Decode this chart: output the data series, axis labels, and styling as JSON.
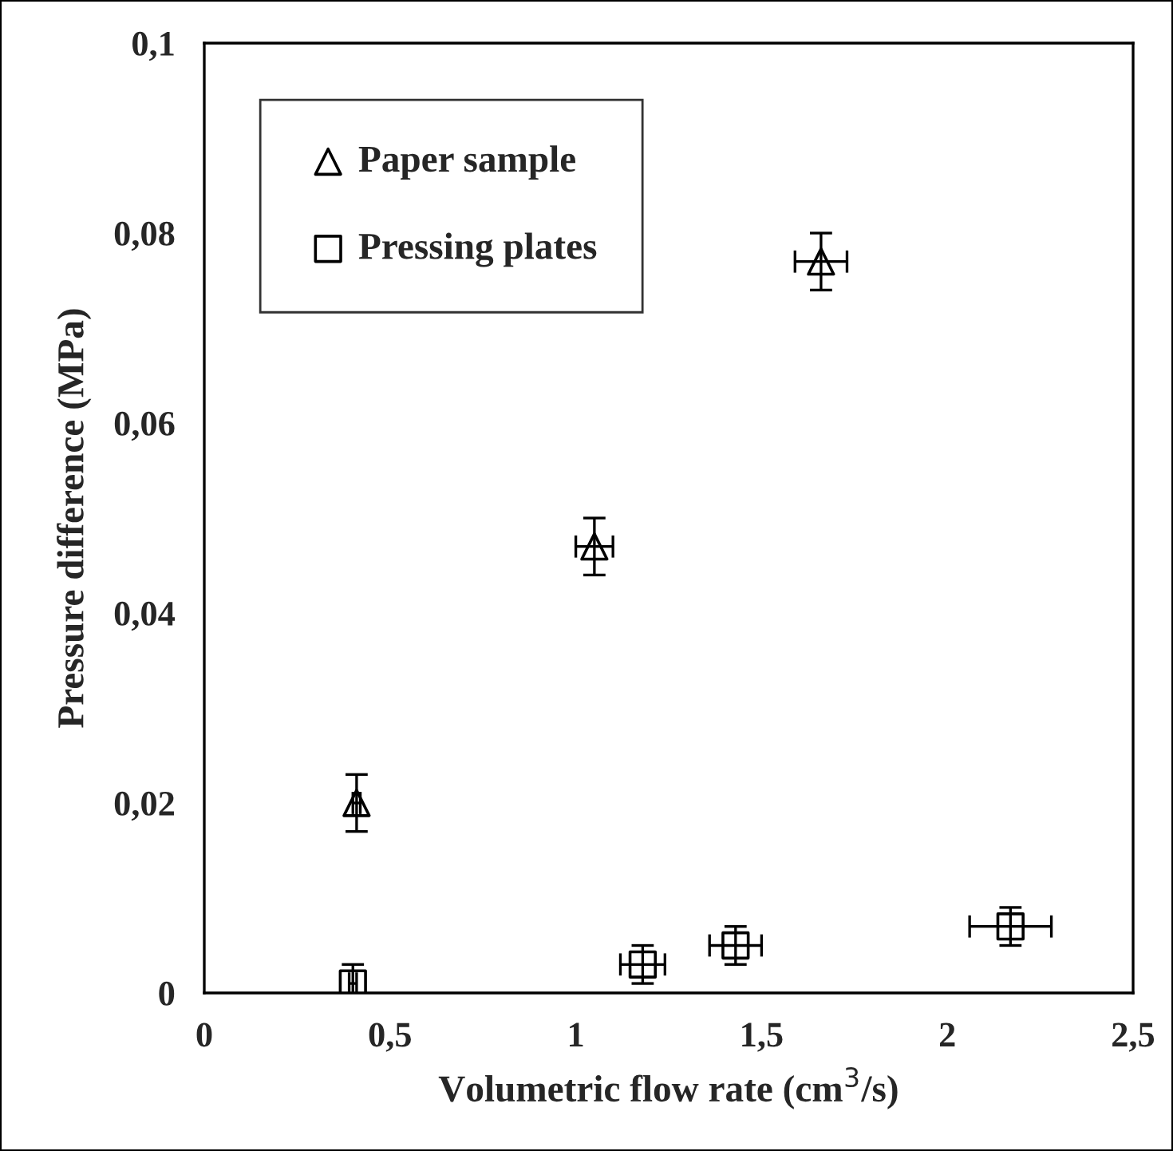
{
  "chart_data": {
    "type": "scatter",
    "xlabel": "Volumetric flow rate (cm$^{3}$/s)",
    "ylabel": "Pressure difference (MPa)",
    "xlim": [
      0,
      2.5
    ],
    "ylim": [
      0,
      0.1
    ],
    "xticks": [
      0,
      {
        "value": 0.5,
        "label": "0,5"
      },
      1,
      {
        "value": 1.5,
        "label": "1,5"
      },
      2,
      {
        "value": 2.5,
        "label": "2,5"
      }
    ],
    "yticks": [
      0,
      {
        "value": 0.02,
        "label": "0,02"
      },
      {
        "value": 0.04,
        "label": "0,04"
      },
      {
        "value": 0.06,
        "label": "0,06"
      },
      {
        "value": 0.08,
        "label": "0,08"
      },
      {
        "value": 0.1,
        "label": "0,1"
      }
    ],
    "grid": false,
    "legend": "top left",
    "series": [
      {
        "name": "Paper sample",
        "color": "#000000",
        "marker": "triangle",
        "x": [
          0.41,
          1.05,
          1.66
        ],
        "values": [
          0.02,
          0.047,
          0.077
        ],
        "errors": [
          0.003,
          0.003,
          0.003
        ],
        "xerrors": [
          0.01,
          0.05,
          0.07
        ]
      },
      {
        "name": "Pressing plates",
        "color": "#000000",
        "marker": "square",
        "x": [
          0.4,
          1.18,
          1.43,
          2.17
        ],
        "values": [
          0.001,
          0.003,
          0.005,
          0.007
        ],
        "errors": [
          0.002,
          0.002,
          0.002,
          0.002
        ],
        "xerrors": [
          0.01,
          0.06,
          0.07,
          0.11
        ]
      }
    ]
  }
}
